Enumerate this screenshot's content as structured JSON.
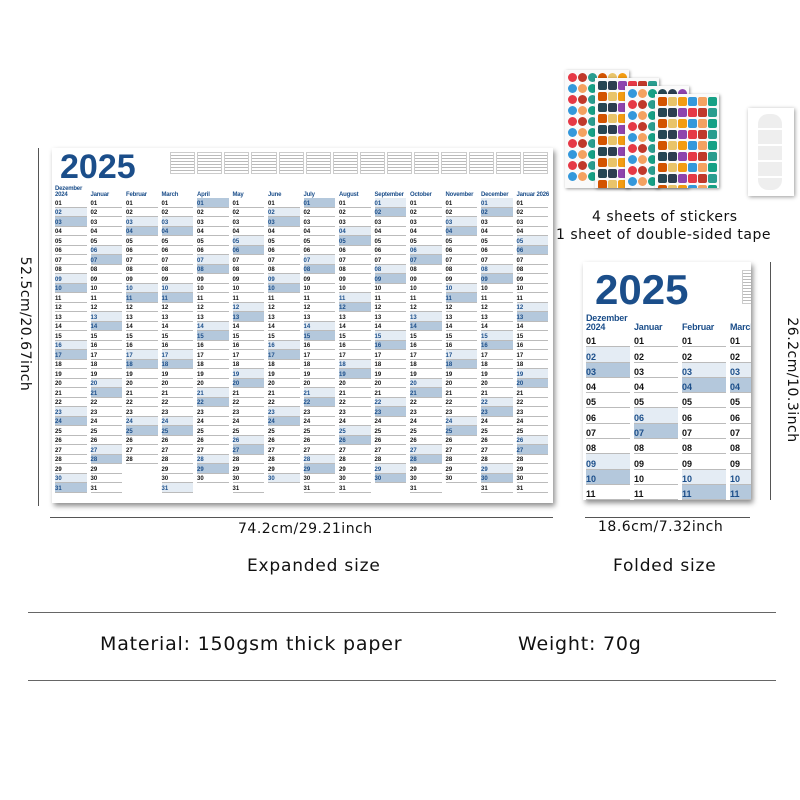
{
  "calendar": {
    "year_title": "2025",
    "months": [
      {
        "name": "Dezember 2024",
        "y": 2024,
        "m": 11,
        "days": 31
      },
      {
        "name": "Januar",
        "y": 2025,
        "m": 0,
        "days": 31
      },
      {
        "name": "Februar",
        "y": 2025,
        "m": 1,
        "days": 28
      },
      {
        "name": "March",
        "y": 2025,
        "m": 2,
        "days": 31
      },
      {
        "name": "April",
        "y": 2025,
        "m": 3,
        "days": 30
      },
      {
        "name": "May",
        "y": 2025,
        "m": 4,
        "days": 31
      },
      {
        "name": "June",
        "y": 2025,
        "m": 5,
        "days": 30
      },
      {
        "name": "July",
        "y": 2025,
        "m": 6,
        "days": 31
      },
      {
        "name": "August",
        "y": 2025,
        "m": 7,
        "days": 31
      },
      {
        "name": "September",
        "y": 2025,
        "m": 8,
        "days": 30
      },
      {
        "name": "October",
        "y": 2025,
        "m": 9,
        "days": 31
      },
      {
        "name": "November",
        "y": 2025,
        "m": 10,
        "days": 30
      },
      {
        "name": "December",
        "y": 2025,
        "m": 11,
        "days": 31
      },
      {
        "name": "Januar 2026",
        "y": 2026,
        "m": 0,
        "days": 31
      }
    ],
    "colors": {
      "accent": "#1b4e8a",
      "weekend_light": "#e4ecf4",
      "weekend_dark": "#b4c8dc"
    }
  },
  "accessories": {
    "stickers": "4 sheets of stickers",
    "tape": "1 sheet of double-sided tape"
  },
  "expanded": {
    "height": "52.5cm/20.67inch",
    "width": "74.2cm/29.21inch",
    "label": "Expanded size"
  },
  "folded": {
    "height": "26.2cm/10.3inch",
    "width": "18.6cm/7.32inch",
    "label": "Folded size"
  },
  "specs": {
    "material": "Material: 150gsm thick paper",
    "weight": "Weight: 70g"
  }
}
